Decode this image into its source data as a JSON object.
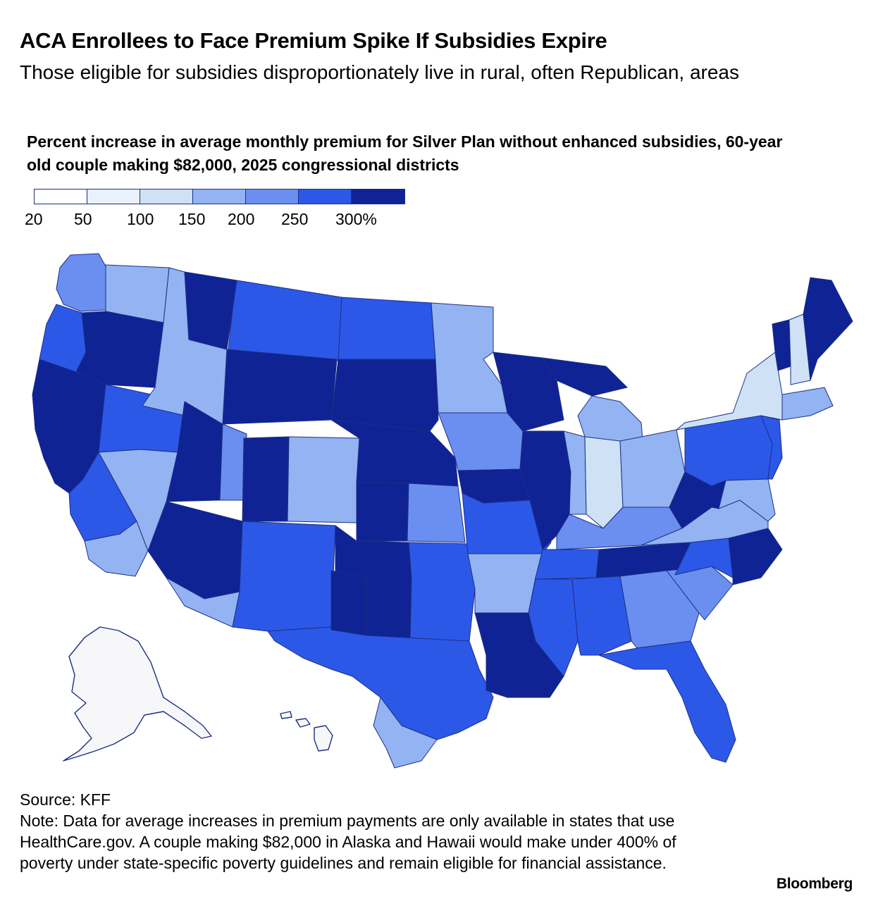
{
  "header": {
    "title": "ACA Enrollees to Face Premium Spike If Subsidies Expire",
    "subtitle": "Those eligible for subsidies disproportionately live in rural, often Republican, areas"
  },
  "chart": {
    "title": "Percent increase in average monthly premium for Silver Plan without enhanced subsidies, 60-year old couple making $82,000, 2025 congressional districts"
  },
  "legend": {
    "bins": [
      {
        "from": 20,
        "to": 50,
        "color": "#ffffff"
      },
      {
        "from": 50,
        "to": 100,
        "color": "#e8f1fc"
      },
      {
        "from": 100,
        "to": 150,
        "color": "#cfe1f5"
      },
      {
        "from": 150,
        "to": 200,
        "color": "#93b3f2"
      },
      {
        "from": 200,
        "to": 250,
        "color": "#6b8ff0"
      },
      {
        "from": 250,
        "to": 300,
        "color": "#2c58e8"
      },
      {
        "from": 300,
        "to": null,
        "color": "#0f2394"
      }
    ],
    "labels": [
      "20",
      "50",
      "100",
      "150",
      "200",
      "250",
      "300%"
    ]
  },
  "map": {
    "no_data_color": "#f7f7f9",
    "outline_color": "#1c2f86",
    "regions": [
      {
        "name": "alaska",
        "value": null
      },
      {
        "name": "hawaii",
        "value": null
      },
      {
        "name": "washington-west",
        "value": 230
      },
      {
        "name": "washington-east",
        "value": 180
      },
      {
        "name": "oregon-coast",
        "value": 260
      },
      {
        "name": "oregon-east",
        "value": 320
      },
      {
        "name": "california-north",
        "value": 310
      },
      {
        "name": "california-central",
        "value": 280
      },
      {
        "name": "california-south",
        "value": 180
      },
      {
        "name": "nevada-north",
        "value": 260
      },
      {
        "name": "nevada-south",
        "value": 170
      },
      {
        "name": "idaho",
        "value": 190
      },
      {
        "name": "montana-west",
        "value": 320
      },
      {
        "name": "montana-east",
        "value": 260
      },
      {
        "name": "wyoming",
        "value": 320
      },
      {
        "name": "utah-west",
        "value": 320
      },
      {
        "name": "utah-east",
        "value": 240
      },
      {
        "name": "colorado-west",
        "value": 320
      },
      {
        "name": "colorado-east",
        "value": 180
      },
      {
        "name": "arizona-north",
        "value": 320
      },
      {
        "name": "arizona-south",
        "value": 170
      },
      {
        "name": "new-mexico",
        "value": 260
      },
      {
        "name": "north-dakota",
        "value": 260
      },
      {
        "name": "south-dakota",
        "value": 320
      },
      {
        "name": "nebraska",
        "value": 320
      },
      {
        "name": "kansas-west",
        "value": 320
      },
      {
        "name": "kansas-east",
        "value": 240
      },
      {
        "name": "oklahoma-west",
        "value": 320
      },
      {
        "name": "oklahoma-east",
        "value": 260
      },
      {
        "name": "texas-panhandle",
        "value": 320
      },
      {
        "name": "texas",
        "value": 260
      },
      {
        "name": "texas-south",
        "value": 180
      },
      {
        "name": "minnesota",
        "value": 170
      },
      {
        "name": "iowa",
        "value": 210
      },
      {
        "name": "missouri-north",
        "value": 320
      },
      {
        "name": "missouri-south",
        "value": 260
      },
      {
        "name": "arkansas",
        "value": 180
      },
      {
        "name": "louisiana",
        "value": 320
      },
      {
        "name": "wisconsin",
        "value": 320
      },
      {
        "name": "illinois-west",
        "value": 320
      },
      {
        "name": "illinois-east",
        "value": 160
      },
      {
        "name": "michigan-upper",
        "value": 320
      },
      {
        "name": "michigan-lower",
        "value": 190
      },
      {
        "name": "indiana",
        "value": 130
      },
      {
        "name": "ohio",
        "value": 170
      },
      {
        "name": "kentucky",
        "value": 200
      },
      {
        "name": "tennessee-east",
        "value": 320
      },
      {
        "name": "tennessee-west",
        "value": 260
      },
      {
        "name": "mississippi",
        "value": 260
      },
      {
        "name": "alabama",
        "value": 260
      },
      {
        "name": "georgia",
        "value": 240
      },
      {
        "name": "florida",
        "value": 260
      },
      {
        "name": "south-carolina",
        "value": 200
      },
      {
        "name": "north-carolina-west",
        "value": 260
      },
      {
        "name": "north-carolina-east",
        "value": 320
      },
      {
        "name": "virginia",
        "value": 150
      },
      {
        "name": "west-virginia",
        "value": 320
      },
      {
        "name": "pennsylvania",
        "value": 270
      },
      {
        "name": "new-york",
        "value": 120
      },
      {
        "name": "new-jersey",
        "value": 260
      },
      {
        "name": "maryland",
        "value": 180
      },
      {
        "name": "new-england-south",
        "value": 180
      },
      {
        "name": "vermont",
        "value": 320
      },
      {
        "name": "new-hampshire",
        "value": 120
      },
      {
        "name": "maine",
        "value": 320
      }
    ]
  },
  "footer": {
    "source": "Source: KFF",
    "note": "Note: Data for average increases in premium payments are only available in states that use HealthCare.gov. A couple making $82,000 in Alaska and Hawaii would make under 400% of poverty under state-specific poverty guidelines and remain eligible for financial assistance.",
    "brand": "Bloomberg"
  }
}
